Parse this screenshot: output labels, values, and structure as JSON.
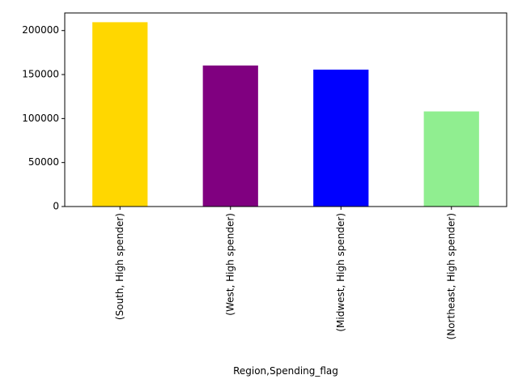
{
  "chart_data": {
    "type": "bar",
    "title": "",
    "xlabel": "Region,Spending_flag",
    "ylabel": "",
    "categories": [
      "(South, High spender)",
      "(West, High spender)",
      "(Midwest, High spender)",
      "(Northeast, High spender)"
    ],
    "values": [
      209500,
      160300,
      155600,
      108100
    ],
    "colors": [
      "#ffd700",
      "#800080",
      "#0000ff",
      "#90ee90"
    ],
    "ylim": [
      0,
      220000
    ],
    "yticks": [
      0,
      50000,
      100000,
      150000,
      200000
    ],
    "ytick_labels": [
      "0",
      "50000",
      "100000",
      "150000",
      "200000"
    ],
    "grid": false,
    "legend": "none"
  }
}
